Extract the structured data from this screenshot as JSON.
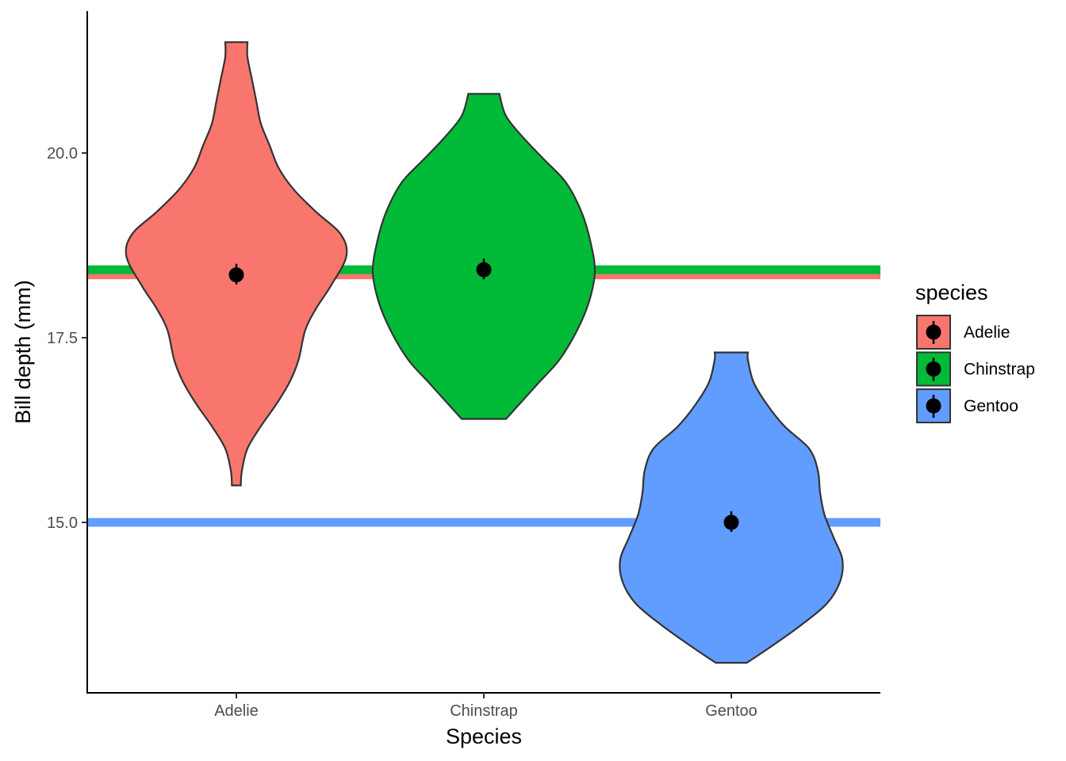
{
  "chart_data": {
    "type": "violin",
    "xlabel": "Species",
    "ylabel": "Bill depth (mm)",
    "categories": [
      "Adelie",
      "Chinstrap",
      "Gentoo"
    ],
    "ylim": [
      12.8,
      22.0
    ],
    "yticks": [
      15.0,
      17.5,
      20.0
    ],
    "ytick_labels": [
      "15.0",
      "17.5",
      "20.0"
    ],
    "grid": false,
    "legend_title": "species",
    "legend_position": "right",
    "colors": {
      "Adelie": "#F8766D",
      "Chinstrap": "#00BA38",
      "Gentoo": "#619CFF"
    },
    "series": [
      {
        "name": "Adelie",
        "mean": 18.35,
        "mean_line": 18.35,
        "min": 15.5,
        "max": 21.5,
        "density": [
          [
            15.5,
            0.04
          ],
          [
            15.7,
            0.05
          ],
          [
            16.0,
            0.1
          ],
          [
            16.3,
            0.22
          ],
          [
            16.6,
            0.36
          ],
          [
            16.9,
            0.48
          ],
          [
            17.2,
            0.56
          ],
          [
            17.6,
            0.62
          ],
          [
            17.9,
            0.72
          ],
          [
            18.2,
            0.85
          ],
          [
            18.6,
            0.99
          ],
          [
            18.9,
            0.94
          ],
          [
            19.2,
            0.72
          ],
          [
            19.5,
            0.52
          ],
          [
            19.8,
            0.38
          ],
          [
            20.1,
            0.3
          ],
          [
            20.4,
            0.22
          ],
          [
            20.7,
            0.18
          ],
          [
            21.0,
            0.14
          ],
          [
            21.3,
            0.1
          ],
          [
            21.5,
            0.1
          ]
        ]
      },
      {
        "name": "Chinstrap",
        "mean": 18.42,
        "mean_line": 18.42,
        "min": 16.4,
        "max": 20.8,
        "density": [
          [
            16.4,
            0.2
          ],
          [
            16.6,
            0.32
          ],
          [
            16.9,
            0.5
          ],
          [
            17.2,
            0.68
          ],
          [
            17.6,
            0.84
          ],
          [
            18.0,
            0.95
          ],
          [
            18.4,
            1.0
          ],
          [
            18.8,
            0.96
          ],
          [
            19.2,
            0.88
          ],
          [
            19.6,
            0.74
          ],
          [
            19.9,
            0.55
          ],
          [
            20.2,
            0.36
          ],
          [
            20.5,
            0.2
          ],
          [
            20.8,
            0.14
          ]
        ]
      },
      {
        "name": "Gentoo",
        "mean": 15.0,
        "mean_line": 15.0,
        "min": 13.1,
        "max": 17.3,
        "density": [
          [
            13.1,
            0.14
          ],
          [
            13.3,
            0.34
          ],
          [
            13.6,
            0.62
          ],
          [
            13.9,
            0.86
          ],
          [
            14.2,
            0.98
          ],
          [
            14.5,
            1.0
          ],
          [
            14.8,
            0.92
          ],
          [
            15.1,
            0.84
          ],
          [
            15.4,
            0.8
          ],
          [
            15.7,
            0.78
          ],
          [
            16.0,
            0.7
          ],
          [
            16.3,
            0.48
          ],
          [
            16.6,
            0.32
          ],
          [
            16.9,
            0.2
          ],
          [
            17.2,
            0.15
          ],
          [
            17.3,
            0.15
          ]
        ]
      }
    ]
  }
}
